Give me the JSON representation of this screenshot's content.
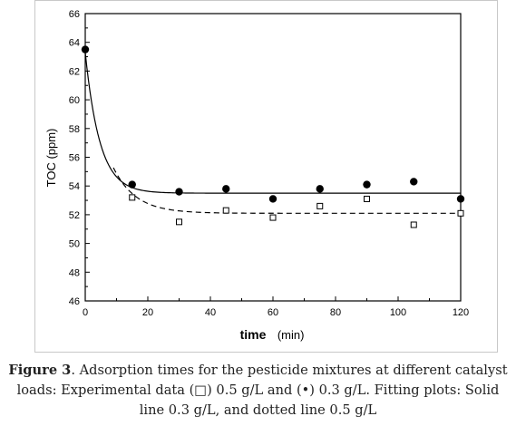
{
  "caption": {
    "label": "Figure 3",
    "text": ". Adsorption times for the pesticide mixtures at different catalyst loads: Experimental data (□) 0.5 g/L and (•) 0.3 g/L. Fitting plots: Solid line 0.3 g/L, and dotted line 0.5 g/L"
  },
  "chart_data": {
    "type": "scatter",
    "title": "",
    "xlabel": "time",
    "xlabel_unit": "(min)",
    "ylabel": "TOC (ppm)",
    "xlim": [
      0,
      120
    ],
    "ylim": [
      46,
      66
    ],
    "x_ticks": [
      0,
      20,
      40,
      60,
      80,
      100,
      120
    ],
    "y_ticks": [
      46,
      48,
      50,
      52,
      54,
      56,
      58,
      60,
      62,
      64,
      66
    ],
    "grid": false,
    "legend": "none",
    "series": [
      {
        "marker": "filled-circle",
        "color": "#000000",
        "x": [
          0,
          15,
          30,
          45,
          60,
          75,
          90,
          105,
          120
        ],
        "y": [
          63.5,
          54.1,
          53.6,
          53.8,
          53.1,
          53.8,
          54.1,
          54.3,
          53.1
        ]
      },
      {
        "marker": "open-square",
        "color": "#000000",
        "x": [
          15,
          30,
          45,
          60,
          75,
          90,
          105,
          120
        ],
        "y": [
          53.2,
          51.5,
          52.3,
          51.8,
          52.6,
          53.1,
          51.3,
          52.1
        ]
      }
    ],
    "fits": [
      {
        "style": "solid",
        "model": "exponential",
        "x_start": 0,
        "x_end": 120,
        "y0": 63.3,
        "plateau": 53.5,
        "rate": 0.215
      },
      {
        "style": "dashed",
        "model": "exponential",
        "x_start": 9,
        "x_end": 120,
        "y0": 63.3,
        "plateau": 52.1,
        "rate": 0.14
      }
    ]
  }
}
